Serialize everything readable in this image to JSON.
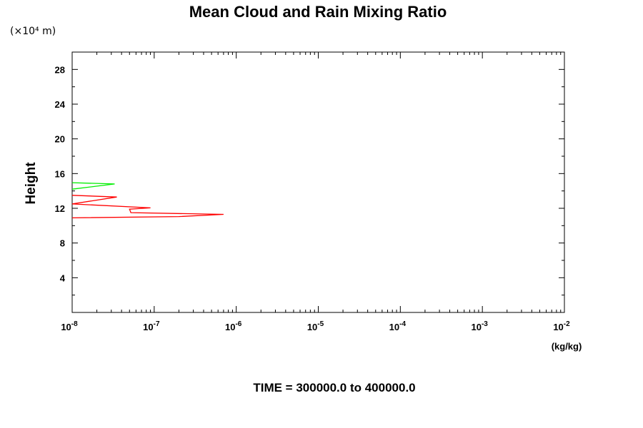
{
  "chart_data": {
    "type": "line",
    "title": "Mean Cloud and Rain Mixing Ratio",
    "y_multiplier_label": "(×10⁴ m)",
    "ylabel": "Height",
    "xlabel": "(kg/kg)",
    "x_scale": "log",
    "xlim": [
      1e-08,
      0.01
    ],
    "ylim": [
      0,
      30
    ],
    "x_tick_labels": [
      {
        "value": 1e-08,
        "base": "10",
        "exp": "-8"
      },
      {
        "value": 1e-07,
        "base": "10",
        "exp": "-7"
      },
      {
        "value": 1e-06,
        "base": "10",
        "exp": "-6"
      },
      {
        "value": 1e-05,
        "base": "10",
        "exp": "-5"
      },
      {
        "value": 0.0001,
        "base": "10",
        "exp": "-4"
      },
      {
        "value": 0.001,
        "base": "10",
        "exp": "-3"
      },
      {
        "value": 0.01,
        "base": "10",
        "exp": "-2"
      }
    ],
    "y_ticks": [
      4,
      8,
      12,
      16,
      20,
      24,
      28
    ],
    "y_tick_labels": [
      "4",
      "8",
      "12",
      "16",
      "20",
      "24",
      "28"
    ],
    "grid": false,
    "series": [
      {
        "color": "#ff0000",
        "points": [
          [
            1e-08,
            10.9
          ],
          [
            2e-07,
            11.05
          ],
          [
            7e-07,
            11.3
          ],
          [
            5.2e-08,
            11.5
          ],
          [
            5e-08,
            11.9
          ],
          [
            9e-08,
            12.05
          ],
          [
            1e-08,
            12.5
          ],
          [
            3.5e-08,
            13.3
          ],
          [
            1e-08,
            13.5
          ]
        ]
      },
      {
        "color": "#00ee00",
        "points": [
          [
            1e-08,
            14.2
          ],
          [
            3.3e-08,
            14.8
          ],
          [
            1e-08,
            14.95
          ]
        ]
      }
    ],
    "annotation": "TIME = 300000.0 to 400000.0"
  }
}
